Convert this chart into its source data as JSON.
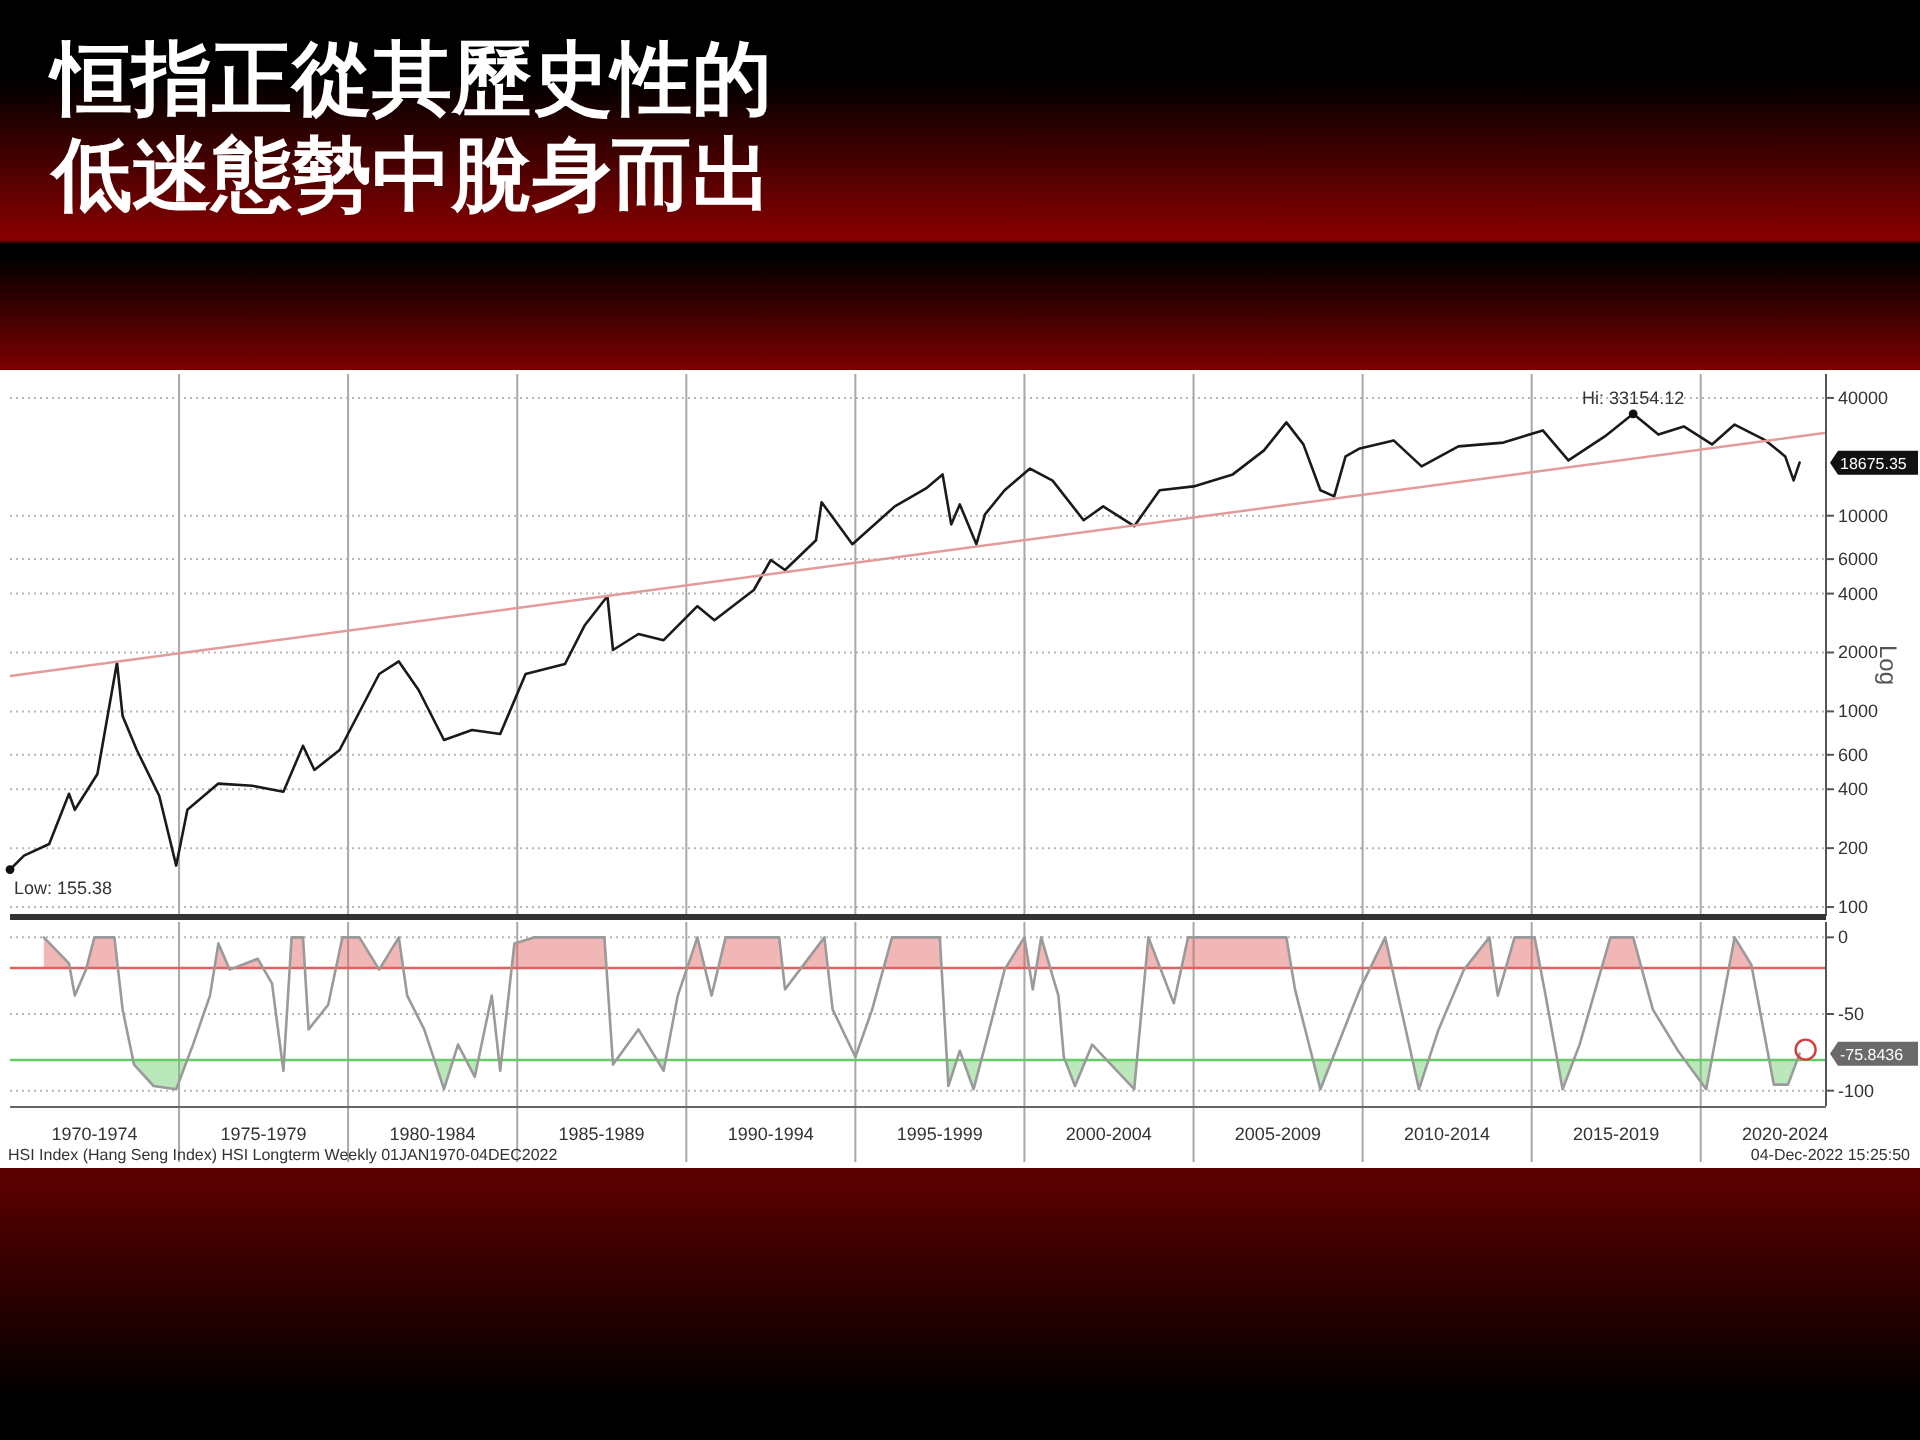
{
  "chart_data": [
    {
      "type": "line",
      "title": "恒指正從其歷史性的低迷態勢中脫身而出",
      "ylabel": "Log",
      "log": "y",
      "grid": true,
      "tick_labels": "y",
      "xlim": [
        "1970-01-01",
        "2023-09-15"
      ],
      "xticks": [
        {
          "value": "1975-01-01",
          "label": null
        },
        {
          "value": "1980-01-01",
          "label": null
        },
        {
          "value": "1985-01-01",
          "label": null
        },
        {
          "value": "1990-01-01",
          "label": null
        },
        {
          "value": "1995-01-01",
          "label": null
        },
        {
          "value": "2000-01-01",
          "label": null
        },
        {
          "value": "2005-01-01",
          "label": null
        },
        {
          "value": "2010-01-01",
          "label": null
        },
        {
          "value": "2015-01-01",
          "label": null
        },
        {
          "value": "2020-01-01",
          "label": null
        }
      ],
      "ylim": [
        90,
        53000
      ],
      "yticks": [
        40000,
        10000,
        6000,
        4000,
        2000,
        1000,
        600,
        400,
        200,
        100
      ],
      "series": [
        {
          "type": "line",
          "color": "#1a1a1a",
          "x": [
            "1970-01-01",
            "1970-06",
            "1971-03",
            "1971-10",
            "1971-12",
            "1972-08",
            "1973-03",
            "1973-05",
            "1973-10",
            "1974-06",
            "1974-12",
            "1975-04",
            "1976-03",
            "1977-03",
            "1978-02",
            "1978-09",
            "1979-01",
            "1979-10",
            "1980-12",
            "1981-07",
            "1982-02",
            "1982-11",
            "1983-09",
            "1984-07",
            "1985-04",
            "1986-06",
            "1987-01",
            "1987-09",
            "1987-11",
            "1988-08",
            "1989-05",
            "1990-05",
            "1990-11",
            "1992-01",
            "1992-07",
            "1992-12",
            "1993-11",
            "1994-01",
            "1994-12",
            "1996-03",
            "1997-02",
            "1997-08",
            "1997-11",
            "1998-02",
            "1998-08",
            "1998-11",
            "1999-06",
            "2000-03",
            "2000-11",
            "2001-10",
            "2002-05",
            "2003-04",
            "2004-01",
            "2005-01",
            "2006-03",
            "2007-02",
            "2007-10",
            "2008-04",
            "2008-10",
            "2009-03",
            "2009-07",
            "2009-12",
            "2010-12",
            "2011-10",
            "2012-11",
            "2014-03",
            "2015-05",
            "2016-02",
            "2017-03",
            "2018-01",
            "2018-10",
            "2019-07",
            "2020-05",
            "2021-01",
            "2021-12",
            "2022-07",
            "2022-10",
            "2022-12-04"
          ],
          "values": [
            155.38,
            183,
            210,
            379,
            314,
            479,
            1774,
            948,
            635,
            370,
            163,
            314,
            427,
            417,
            388,
            667,
            502,
            635,
            1552,
            1800,
            1285,
            714,
            804,
            767,
            1552,
            1746,
            2754,
            3882,
            2057,
            2483,
            2312,
            3451,
            2924,
            4169,
            5943,
            5284,
            7500,
            11720,
            7145,
            11166,
            13800,
            16260,
            9037,
            11430,
            7145,
            10160,
            13500,
            17400,
            15100,
            9480,
            11166,
            8830,
            13500,
            14130,
            16260,
            21570,
            29970,
            23120,
            13500,
            12560,
            20090,
            22080,
            24270,
            17870,
            22590,
            23660,
            27290,
            19190,
            25420,
            33154.12,
            26000,
            28580,
            23120,
            29250,
            24270,
            20090,
            15170,
            18675.35
          ]
        },
        {
          "type": "line",
          "color": "#e39a9a",
          "x": [
            "1970-01-01",
            "2023-09-15"
          ],
          "values": [
            1517,
            26520
          ]
        }
      ],
      "annotations": [
        {
          "text": "Low: 155.38",
          "x": "1970-01-01",
          "y": 155.38
        },
        {
          "text": "Hi: 33154.12",
          "x": "2018-01",
          "y": 33154.12
        },
        {
          "text": "18675.35",
          "x": "2022-12-04",
          "y": 18675.35
        }
      ]
    },
    {
      "type": "line",
      "grid": true,
      "xlim": [
        "1970-01-01",
        "2023-09-15"
      ],
      "xticks": [
        {
          "value": "1972-07-01",
          "label": "1970-1974"
        },
        {
          "value": "1975-01-01",
          "label": null
        },
        {
          "value": "1977-07-01",
          "label": "1975-1979"
        },
        {
          "value": "1980-01-01",
          "label": null
        },
        {
          "value": "1982-07-01",
          "label": "1980-1984"
        },
        {
          "value": "1985-01-01",
          "label": null
        },
        {
          "value": "1987-07-01",
          "label": "1985-1989"
        },
        {
          "value": "1990-01-01",
          "label": null
        },
        {
          "value": "1992-07-01",
          "label": "1990-1994"
        },
        {
          "value": "1995-01-01",
          "label": null
        },
        {
          "value": "1997-07-01",
          "label": "1995-1999"
        },
        {
          "value": "2000-01-01",
          "label": null
        },
        {
          "value": "2002-07-01",
          "label": "2000-2004"
        },
        {
          "value": "2005-01-01",
          "label": null
        },
        {
          "value": "2007-07-01",
          "label": "2005-2009"
        },
        {
          "value": "2010-01-01",
          "label": null
        },
        {
          "value": "2012-07-01",
          "label": "2010-2014"
        },
        {
          "value": "2015-01-01",
          "label": null
        },
        {
          "value": "2017-07-01",
          "label": "2015-2019"
        },
        {
          "value": "2020-01-01",
          "label": null
        },
        {
          "value": "2022-07-01",
          "label": "2020-2024"
        }
      ],
      "ylim": [
        -110,
        10
      ],
      "yticks": [
        0,
        -50,
        -100
      ],
      "ref_lines": [
        {
          "axis": "y",
          "value": -20,
          "color": "#e06060"
        },
        {
          "axis": "y",
          "value": -80,
          "color": "#66cc66"
        }
      ],
      "series": [
        {
          "type": "line",
          "color": "#9a9a9a",
          "x": [
            "1971-01",
            "1971-10",
            "1971-12",
            "1972-04",
            "1972-07",
            "1973-02",
            "1973-05",
            "1973-09",
            "1974-04",
            "1974-12",
            "1975-06",
            "1975-12",
            "1976-03",
            "1976-07",
            "1977-05",
            "1977-10",
            "1978-02",
            "1978-05",
            "1978-09",
            "1978-11",
            "1979-06",
            "1979-11",
            "1980-05",
            "1980-12",
            "1981-07",
            "1981-10",
            "1982-04",
            "1982-11",
            "1983-04",
            "1983-10",
            "1984-04",
            "1984-07",
            "1984-12",
            "1985-07",
            "1987-08",
            "1987-11",
            "1988-08",
            "1989-05",
            "1989-10",
            "1990-05",
            "1990-10",
            "1991-03",
            "1992-10",
            "1992-12",
            "1994-02",
            "1994-05",
            "1995-01",
            "1995-07",
            "1996-02",
            "1997-07",
            "1997-10",
            "1998-02",
            "1998-07",
            "1998-12",
            "1999-06",
            "2000-01",
            "2000-04",
            "2000-07",
            "2001-01",
            "2001-03",
            "2001-07",
            "2002-01",
            "2003-04",
            "2003-09",
            "2004-06",
            "2004-11",
            "2007-10",
            "2008-01",
            "2008-10",
            "2009-12",
            "2010-09",
            "2011-09",
            "2012-04",
            "2013-01",
            "2013-10",
            "2014-01",
            "2014-07",
            "2015-02",
            "2015-06",
            "2015-12",
            "2016-06",
            "2017-05",
            "2018-01",
            "2018-08",
            "2019-05",
            "2020-03",
            "2021-01",
            "2021-07",
            "2022-03",
            "2022-08",
            "2022-12-04"
          ],
          "values": [
            0,
            -17,
            -38,
            -21,
            0,
            0,
            -47,
            -83,
            -97,
            -99,
            -70,
            -38,
            -4,
            -21,
            -14,
            -30,
            -87,
            0,
            0,
            -60,
            -44,
            0,
            0,
            -21,
            0,
            -38,
            -60,
            -99,
            -70,
            -91,
            -38,
            -87,
            -4,
            0,
            0,
            -83,
            -60,
            -87,
            -38,
            0,
            -38,
            0,
            0,
            -34,
            0,
            -47,
            -78,
            -47,
            0,
            0,
            -97,
            -74,
            -99,
            -64,
            -21,
            0,
            -34,
            0,
            -38,
            -78,
            -97,
            -70,
            -99,
            0,
            -43,
            0,
            0,
            -34,
            -99,
            -34,
            0,
            -99,
            -60,
            -21,
            0,
            -38,
            0,
            0,
            -38,
            -99,
            -70,
            0,
            0,
            -47,
            -74,
            -99,
            0,
            -18,
            -96,
            -96,
            -75.8436
          ]
        }
      ],
      "annotations": [
        {
          "text": "-75.8436",
          "x": "2022-12-04",
          "y": -75.8436
        },
        "HSI Index (Hang Seng Index) HSI Longterm  Weekly 01JAN1970-04DEC2022",
        "04-Dec-2022 15:25:50"
      ]
    }
  ]
}
